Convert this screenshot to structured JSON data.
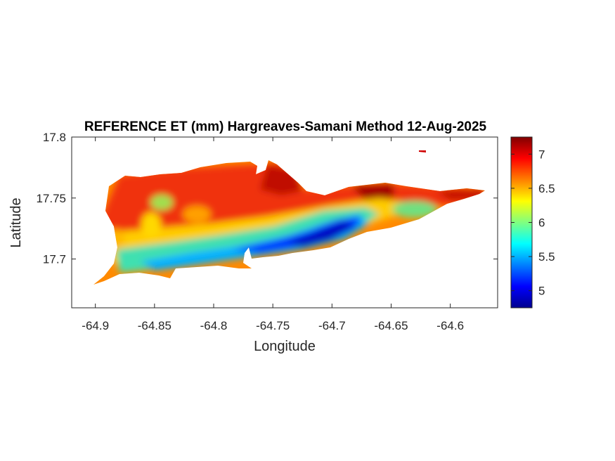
{
  "chart_data": {
    "type": "heatmap",
    "title": "REFERENCE ET (mm) Hargreaves-Samani Method  12-Aug-2025",
    "xlabel": "Longitude",
    "ylabel": "Latitude",
    "xlim": [
      -64.92,
      -64.56
    ],
    "ylim": [
      17.66,
      17.8
    ],
    "xticks": [
      -64.9,
      -64.85,
      -64.8,
      -64.75,
      -64.7,
      -64.65,
      -64.6
    ],
    "xtick_labels": [
      "-64.9",
      "-64.85",
      "-64.8",
      "-64.75",
      "-64.7",
      "-64.65",
      "-64.6"
    ],
    "yticks": [
      17.7,
      17.75,
      17.8
    ],
    "ytick_labels": [
      "17.7",
      "17.75",
      "17.8"
    ],
    "colorbar": {
      "range": [
        4.75,
        7.25
      ],
      "ticks": [
        5,
        5.5,
        6,
        6.5,
        7
      ],
      "tick_labels": [
        "5",
        "5.5",
        "6",
        "6.5",
        "7"
      ],
      "colormap": "jet"
    },
    "grid": false
  }
}
